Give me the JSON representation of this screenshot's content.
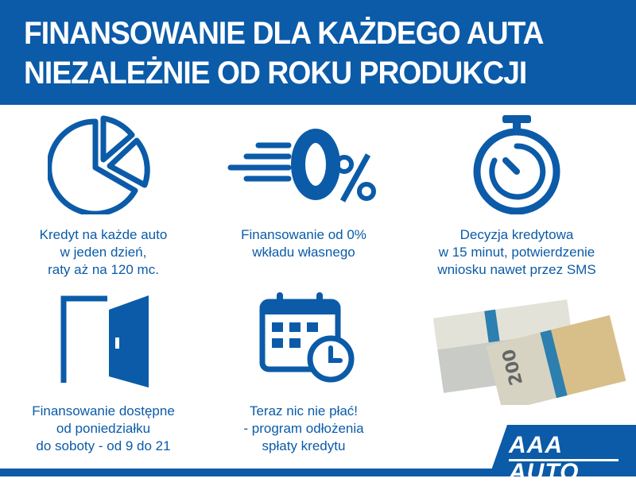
{
  "header": {
    "line1": "FINANSOWANIE DLA KAŻDEGO AUTA",
    "line2": "NIEZALEŻNIE OD ROKU PRODUKCJI"
  },
  "features": [
    {
      "icon": "pie-chart-icon",
      "lines": [
        "Kredyt na każde auto",
        "w jeden dzień,",
        "raty aż na 120 mc."
      ]
    },
    {
      "icon": "zero-percent-icon",
      "lines": [
        "Finansowanie od 0%",
        "wkładu własnego"
      ]
    },
    {
      "icon": "stopwatch-icon",
      "lines": [
        "Decyzja kredytowa",
        "w 15 minut, potwierdzenie",
        "wniosku nawet przez SMS"
      ]
    },
    {
      "icon": "door-icon",
      "lines": [
        "Finansowanie dostępne",
        "od poniedziałku",
        "do soboty - od 9 do 21"
      ]
    },
    {
      "icon": "calendar-clock-icon",
      "lines": [
        "Teraz nic nie płać!",
        "- program odłożenia",
        "spłaty kredytu"
      ]
    }
  ],
  "logo": {
    "text": "AAA AUTO"
  },
  "colors": {
    "brand": "#0b5ba8"
  }
}
